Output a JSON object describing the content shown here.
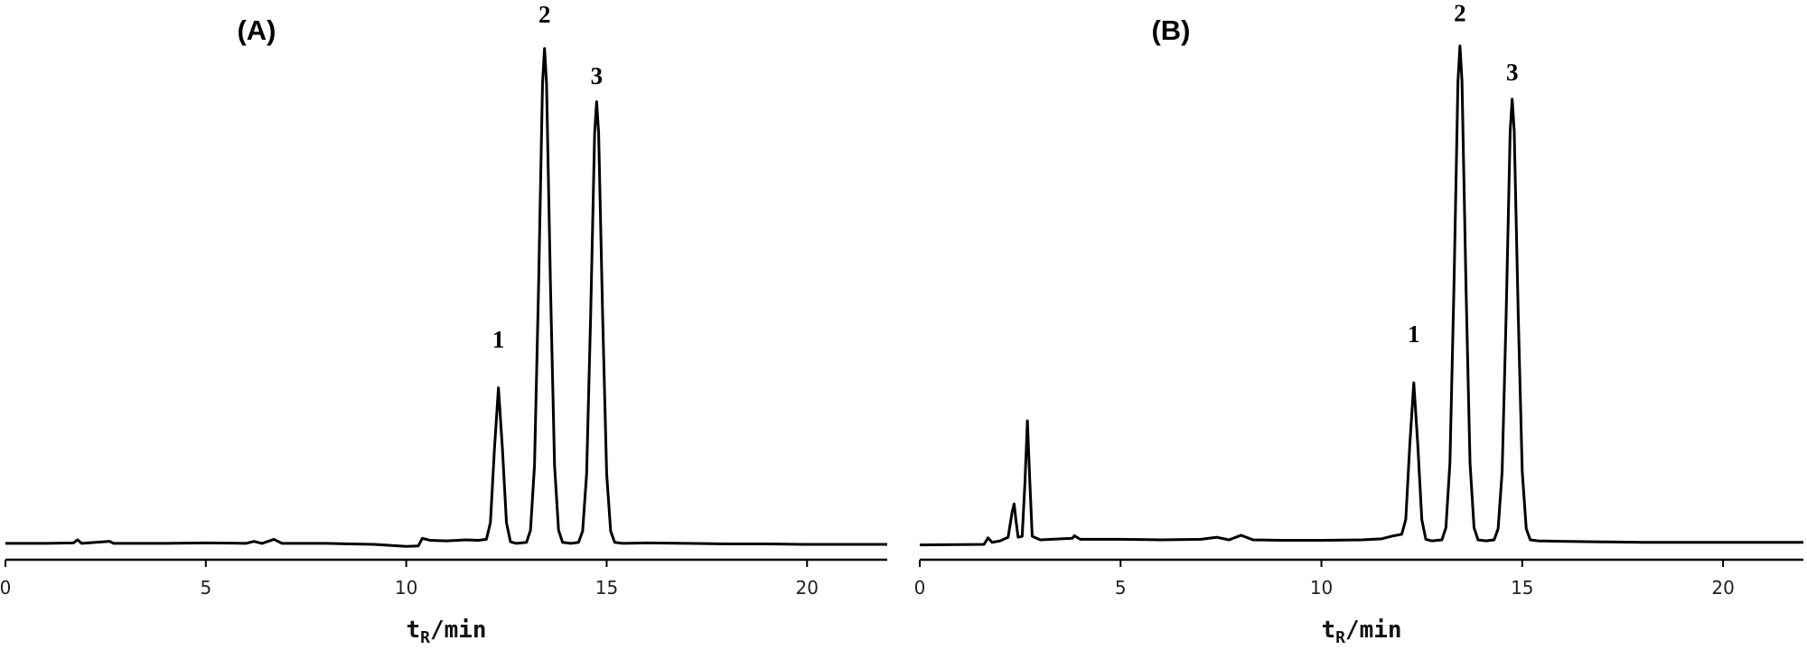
{
  "chart_data": [
    {
      "type": "line",
      "panel_label": "(A)",
      "x_label": [
        "t",
        "R",
        "/min"
      ],
      "xlim": [
        0,
        22
      ],
      "xticks": [
        0,
        5,
        10,
        15,
        20
      ],
      "ylim": [
        0,
        108
      ],
      "color": "#000000",
      "x": [
        0,
        1,
        1.7,
        1.8,
        1.9,
        2.6,
        2.7,
        4,
        5,
        6,
        6.2,
        6.4,
        6.7,
        6.9,
        8,
        9.2,
        10,
        10.3,
        10.4,
        10.6,
        11,
        11.5,
        11.8,
        12.0,
        12.1,
        12.2,
        12.3,
        12.4,
        12.5,
        12.6,
        12.75,
        13.0,
        13.1,
        13.2,
        13.3,
        13.4,
        13.45,
        13.5,
        13.6,
        13.7,
        13.8,
        13.9,
        14.1,
        14.3,
        14.4,
        14.5,
        14.6,
        14.7,
        14.75,
        14.8,
        14.9,
        15.0,
        15.1,
        15.2,
        15.4,
        16,
        17,
        18,
        19,
        20,
        21,
        22
      ],
      "values": [
        1.8,
        1.8,
        1.9,
        2.5,
        1.8,
        2.2,
        1.8,
        1.8,
        1.9,
        1.8,
        2.2,
        1.8,
        2.6,
        1.8,
        1.8,
        1.6,
        1.2,
        1.3,
        2.8,
        2.4,
        2.3,
        2.5,
        2.4,
        2.6,
        5.9,
        20.4,
        32.5,
        20.4,
        5.9,
        2.1,
        1.8,
        2.0,
        4.4,
        17.2,
        52.0,
        92.6,
        99.5,
        92.6,
        52.0,
        17.2,
        4.4,
        2.0,
        1.8,
        2.0,
        4.2,
        15.5,
        46.6,
        82.8,
        89.0,
        82.8,
        46.6,
        15.5,
        4.2,
        2.0,
        1.8,
        1.9,
        1.8,
        1.7,
        1.7,
        1.6,
        1.6,
        1.6
      ],
      "annotations": [
        {
          "text": "1",
          "x": 12.3,
          "y": 41.6
        },
        {
          "text": "2",
          "x": 13.45,
          "y": 105.7
        },
        {
          "text": "3",
          "x": 14.75,
          "y": 93.6
        }
      ]
    },
    {
      "type": "line",
      "panel_label": "(B)",
      "x_label": [
        "t",
        "R",
        "/min"
      ],
      "xlim": [
        0,
        22
      ],
      "xticks": [
        0,
        5,
        10,
        15,
        20
      ],
      "ylim": [
        0,
        108
      ],
      "color": "#000000",
      "x": [
        0,
        1.6,
        1.7,
        1.8,
        2.0,
        2.2,
        2.3,
        2.35,
        2.4,
        2.45,
        2.55,
        2.62,
        2.68,
        2.74,
        2.8,
        3.0,
        3.8,
        3.85,
        4,
        5,
        6,
        7,
        7.4,
        7.7,
        8,
        8.3,
        9,
        10,
        11,
        11.5,
        11.8,
        12.0,
        12.1,
        12.2,
        12.3,
        12.4,
        12.5,
        12.6,
        12.75,
        13.0,
        13.1,
        13.2,
        13.3,
        13.4,
        13.45,
        13.5,
        13.6,
        13.7,
        13.8,
        13.9,
        14.1,
        14.3,
        14.4,
        14.5,
        14.6,
        14.7,
        14.75,
        14.8,
        14.9,
        15.0,
        15.1,
        15.2,
        15.4,
        16,
        17,
        18,
        19,
        20,
        21,
        22
      ],
      "values": [
        1.5,
        1.6,
        2.9,
        2.0,
        2.3,
        3.0,
        8.0,
        9.6,
        6.0,
        3.0,
        3.2,
        14,
        26,
        14,
        3.2,
        2.5,
        2.8,
        3.3,
        2.6,
        2.6,
        2.5,
        2.6,
        3.0,
        2.5,
        3.4,
        2.5,
        2.4,
        2.4,
        2.5,
        2.7,
        3.3,
        3.6,
        6.5,
        21.2,
        33.5,
        21.2,
        6.5,
        2.6,
        2.3,
        2.5,
        4.9,
        17.7,
        52.5,
        93.1,
        100,
        93.1,
        52.5,
        17.7,
        4.9,
        2.5,
        2.3,
        2.5,
        4.7,
        16,
        47.1,
        83.3,
        89.5,
        83.3,
        47.1,
        16,
        4.7,
        2.5,
        2.3,
        2.2,
        2.1,
        2.0,
        2.0,
        2.0,
        2.0,
        2.0
      ],
      "annotations": [
        {
          "text": "1",
          "x": 12.3,
          "y": 42.6
        },
        {
          "text": "2",
          "x": 13.45,
          "y": 106
        },
        {
          "text": "3",
          "x": 14.75,
          "y": 94.3
        }
      ]
    }
  ]
}
